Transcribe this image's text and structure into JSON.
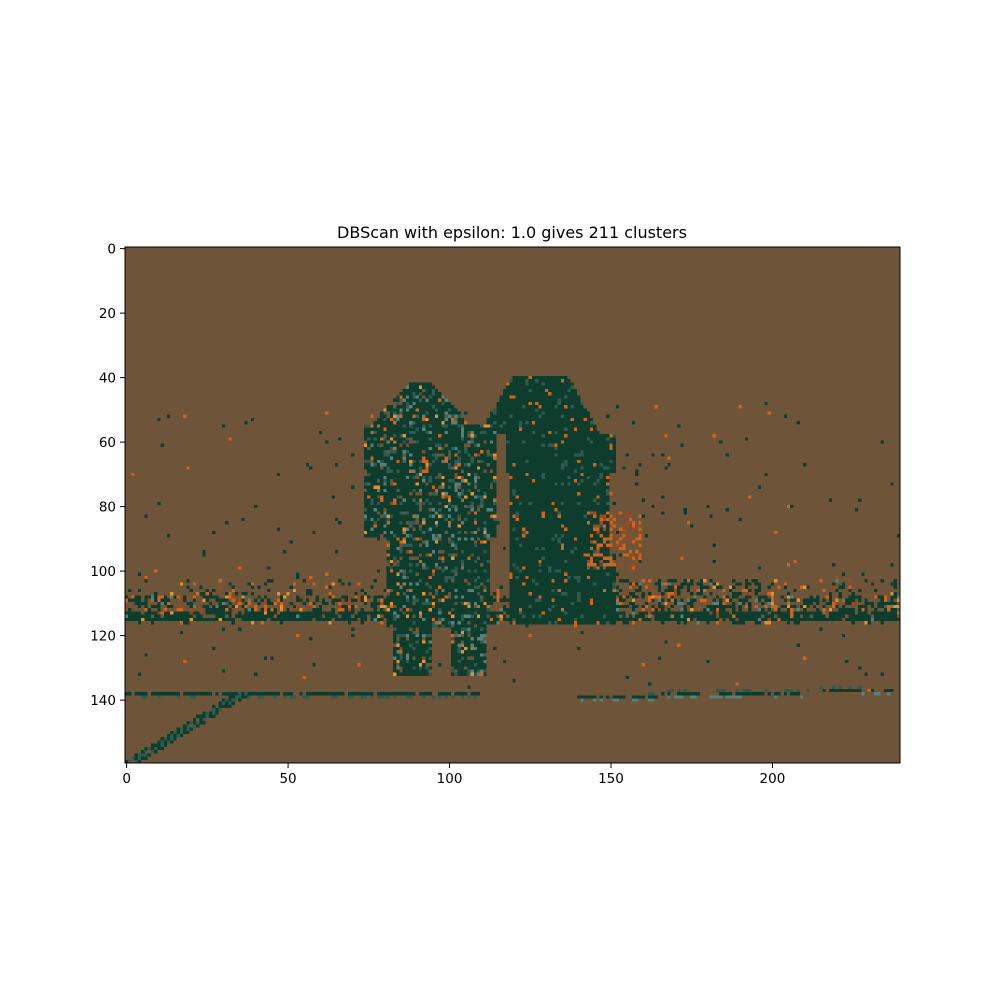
{
  "chart_data": {
    "type": "heatmap",
    "title": "DBScan with epsilon: 1.0 gives 211 clusters",
    "xlabel": "",
    "ylabel": "",
    "xlim": [
      -0.5,
      239.5
    ],
    "ylim": [
      159.5,
      -0.5
    ],
    "image_width": 240,
    "image_height": 160,
    "x_ticks": [
      0,
      50,
      100,
      150,
      200
    ],
    "y_ticks": [
      0,
      20,
      40,
      60,
      80,
      100,
      120,
      140
    ],
    "grid": false,
    "legend": "none",
    "colors": {
      "background": "#6e5539",
      "dark_cluster": "#0e3d2d",
      "mid_cluster": "#2f5a52",
      "light_cluster": "#56807e",
      "orange_cluster": "#d0631d",
      "amber_cluster": "#e8902a",
      "rust_cluster": "#9a4a22"
    }
  }
}
